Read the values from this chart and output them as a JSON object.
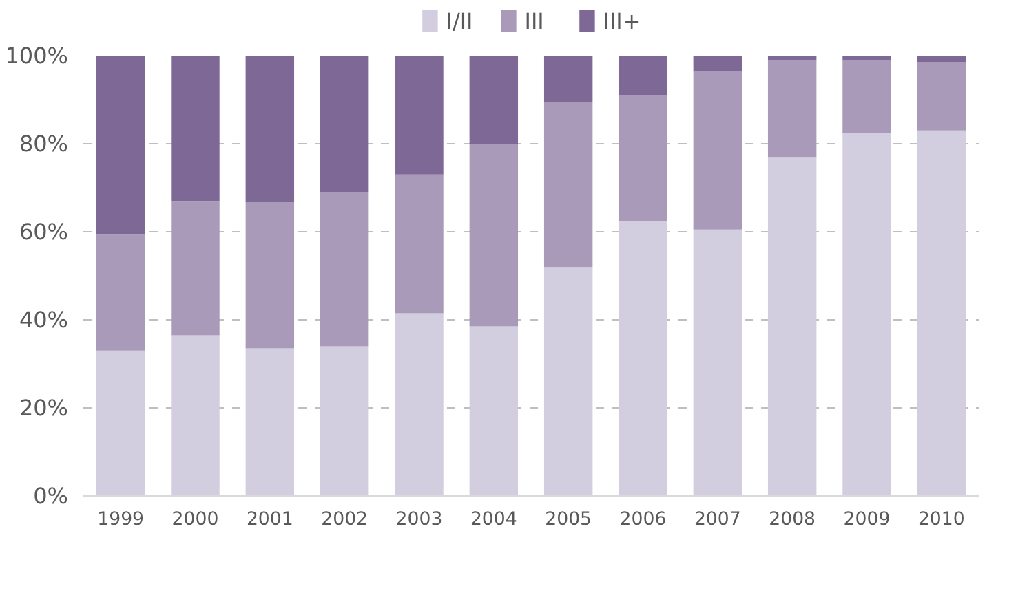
{
  "chart_data": {
    "type": "bar",
    "stacked": true,
    "categories": [
      "1999",
      "2000",
      "2001",
      "2002",
      "2003",
      "2004",
      "2005",
      "2006",
      "2007",
      "2008",
      "2009",
      "2010"
    ],
    "series": [
      {
        "name": "I/II",
        "color": "#d3cde0",
        "values": [
          33,
          36.5,
          33.5,
          34,
          41.5,
          38.5,
          52,
          62.5,
          60.5,
          77,
          82.5,
          83
        ]
      },
      {
        "name": "III",
        "color": "#a89ab8",
        "values": [
          26.5,
          30.5,
          33.3,
          35,
          31.5,
          41.5,
          37.5,
          28.5,
          36,
          22,
          16.5,
          15.5
        ]
      },
      {
        "name": "III+",
        "color": "#7e6896",
        "values": [
          40.5,
          33,
          33.2,
          31,
          27,
          20,
          10.5,
          9,
          3.5,
          1,
          1,
          1.5
        ]
      }
    ],
    "ylim": [
      0,
      100
    ],
    "yticks": [
      {
        "value": 0,
        "label": "0%"
      },
      {
        "value": 20,
        "label": "20%"
      },
      {
        "value": 40,
        "label": "40%"
      },
      {
        "value": 60,
        "label": "60%"
      },
      {
        "value": 80,
        "label": "80%"
      },
      {
        "value": 100,
        "label": "100%"
      }
    ],
    "grid": "y",
    "legend": "top"
  }
}
